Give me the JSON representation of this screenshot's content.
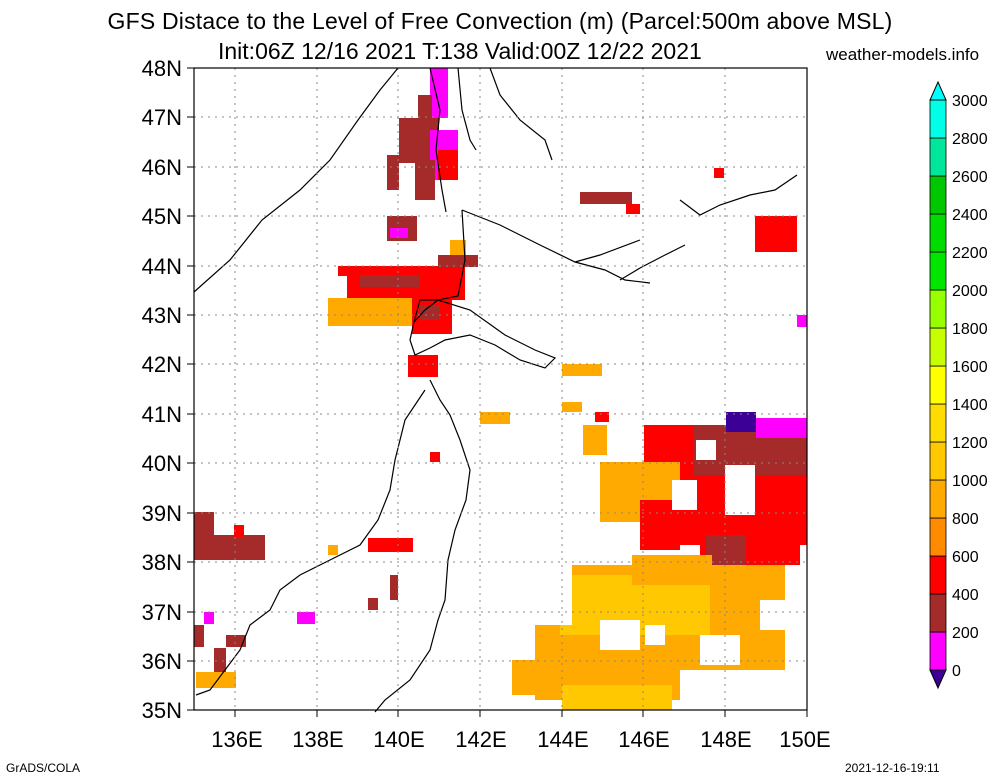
{
  "title": {
    "line1": "GFS Distace to the Level of Free Convection (m) (Parcel:500m above MSL)",
    "line2": "Init:06Z 12/16 2021 T:138 Valid:00Z 12/22 2021",
    "site": "weather-models.info"
  },
  "footer": {
    "software": "GrADS/COLA",
    "timestamp": "2021-12-16-19:11"
  },
  "map": {
    "lat_labels": [
      "35N",
      "36N",
      "37N",
      "38N",
      "39N",
      "40N",
      "41N",
      "42N",
      "43N",
      "44N",
      "45N",
      "46N",
      "47N",
      "48N"
    ],
    "lon_labels": [
      "136E",
      "138E",
      "140E",
      "142E",
      "144E",
      "146E",
      "148E",
      "150E"
    ],
    "lat_range": [
      35,
      48
    ],
    "lon_range": [
      135,
      150
    ],
    "grid": "dotted"
  },
  "colorbar": {
    "labels": [
      "0",
      "200",
      "400",
      "600",
      "800",
      "1000",
      "1200",
      "1400",
      "1600",
      "1800",
      "2000",
      "2200",
      "2400",
      "2600",
      "2800",
      "3000"
    ],
    "colors": [
      "#3c0096",
      "#ff00ff",
      "#a52a2a",
      "#ff0000",
      "#ff8c00",
      "#ffaa00",
      "#ffc800",
      "#ffdc00",
      "#ffff00",
      "#c8ff00",
      "#96ff00",
      "#00e600",
      "#00dc00",
      "#00c800",
      "#00e69b",
      "#00ffe6",
      "#00ffff"
    ]
  }
}
